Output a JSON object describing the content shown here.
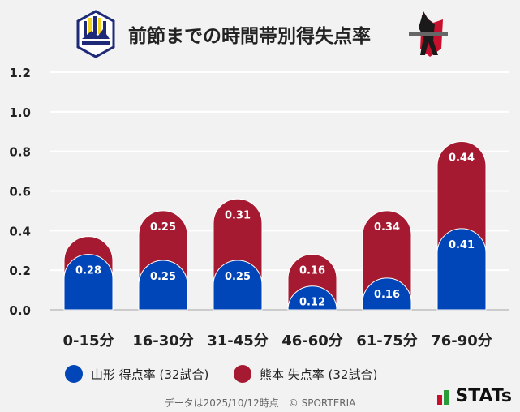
{
  "title": "前節までの時間帯別得失点率",
  "logos": {
    "left": "Montedio YAMAGATA",
    "right": "ROASSO KUMAMOTO"
  },
  "colors": {
    "yamagata": "#0046b8",
    "kumamoto": "#a51a30",
    "grid": "#ffffff"
  },
  "chart_data": {
    "type": "bar",
    "stacked": true,
    "categories": [
      "0-15分",
      "16-30分",
      "31-45分",
      "46-60分",
      "61-75分",
      "76-90分"
    ],
    "series": [
      {
        "name": "山形 得点率 (32試合)",
        "values": [
          0.28,
          0.25,
          0.25,
          0.12,
          0.16,
          0.41
        ],
        "labels": [
          "0.28",
          "0.25",
          "0.25",
          "0.12",
          "0.16",
          "0.41"
        ]
      },
      {
        "name": "熊本 失点率 (32試合)",
        "values": [
          0.09,
          0.25,
          0.31,
          0.16,
          0.34,
          0.44
        ],
        "labels": [
          "",
          "0.25",
          "0.31",
          "0.16",
          "0.34",
          "0.44"
        ]
      }
    ],
    "yticks": [
      "0.0",
      "0.2",
      "0.4",
      "0.6",
      "0.8",
      "1.0",
      "1.2"
    ],
    "ylim": [
      0,
      1.2
    ],
    "grid": true,
    "legend": "bottom"
  },
  "footer": "データは2025/10/12時点　© SPORTERIA",
  "brand": "STATs"
}
